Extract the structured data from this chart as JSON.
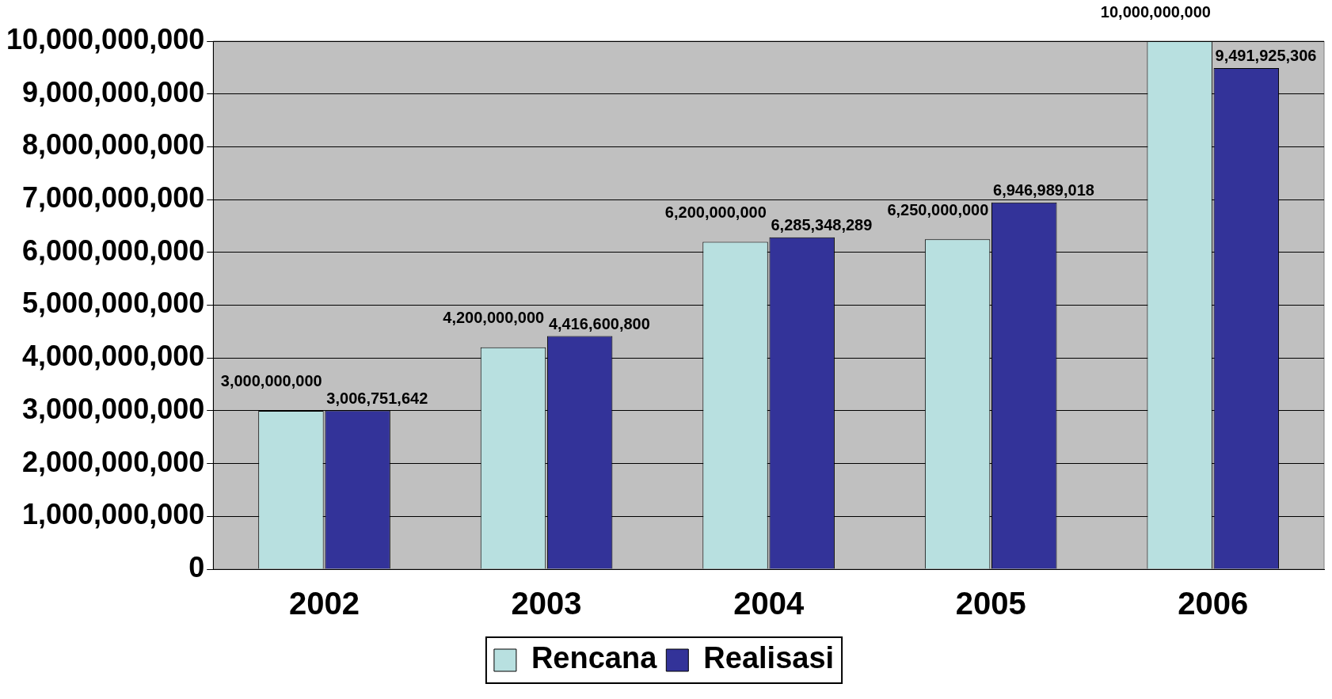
{
  "chart_data": {
    "type": "bar",
    "categories": [
      "2002",
      "2003",
      "2004",
      "2005",
      "2006"
    ],
    "series": [
      {
        "name": "Rencana",
        "color": "#b8e0e0",
        "values": [
          3000000000,
          4200000000,
          6200000000,
          6250000000,
          10000000000
        ],
        "value_labels": [
          "3,000,000,000",
          "4,200,000,000",
          "6,200,000,000",
          "6,250,000,000",
          "10,000,000,000"
        ]
      },
      {
        "name": "Realisasi",
        "color": "#333399",
        "values": [
          3006751642,
          4416600800,
          6285348289,
          6946989018,
          9491925306
        ],
        "value_labels": [
          "3,006,751,642",
          "4,416,600,800",
          "6,285,348,289",
          "6,946,989,018",
          "9,491,925,306"
        ]
      }
    ],
    "ylim": [
      0,
      10000000000
    ],
    "yticks": [
      0,
      {
        "value": 1000000000,
        "label": "1,000,000,000"
      },
      {
        "value": 2000000000,
        "label": "2,000,000,000"
      },
      {
        "value": 3000000000,
        "label": "3,000,000,000"
      },
      {
        "value": 4000000000,
        "label": "4,000,000,000"
      },
      {
        "value": 5000000000,
        "label": "5,000,000,000"
      },
      {
        "value": 6000000000,
        "label": "6,000,000,000"
      },
      {
        "value": 7000000000,
        "label": "7,000,000,000"
      },
      {
        "value": 8000000000,
        "label": "8,000,000,000"
      },
      {
        "value": 9000000000,
        "label": "9,000,000,000"
      },
      {
        "value": 10000000000,
        "label": "10,000,000,000"
      }
    ],
    "grid": "y",
    "legend": "bottom"
  }
}
